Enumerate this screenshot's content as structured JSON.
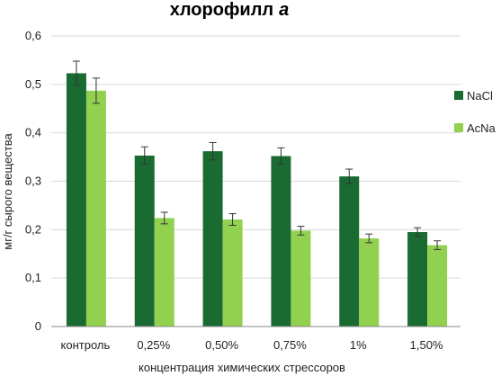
{
  "chart_data": {
    "type": "bar",
    "title": "хлорофилл",
    "title_suffix": "a",
    "xlabel": "концентрация химических стрессоров",
    "ylabel": "мг/г сырого вещества",
    "categories": [
      "контроль",
      "0,25%",
      "0,50%",
      "0,75%",
      "1%",
      "1,50%"
    ],
    "ylim": [
      0,
      0.6
    ],
    "yticks": [
      0,
      0.1,
      0.2,
      0.3,
      0.4,
      0.5,
      0.6
    ],
    "ytick_labels": [
      "0",
      "0,1",
      "0,2",
      "0,3",
      "0,4",
      "0,5",
      "0,6"
    ],
    "grid": true,
    "legend_position": "right",
    "series": [
      {
        "name": "NaCl",
        "color": "#1a6b32",
        "values": [
          0.523,
          0.353,
          0.362,
          0.352,
          0.31,
          0.195
        ],
        "errors": [
          0.025,
          0.018,
          0.018,
          0.017,
          0.015,
          0.009
        ]
      },
      {
        "name": "AcNa",
        "color": "#92d050",
        "values": [
          0.487,
          0.224,
          0.221,
          0.198,
          0.182,
          0.168
        ],
        "errors": [
          0.026,
          0.012,
          0.012,
          0.009,
          0.009,
          0.009
        ]
      }
    ]
  }
}
